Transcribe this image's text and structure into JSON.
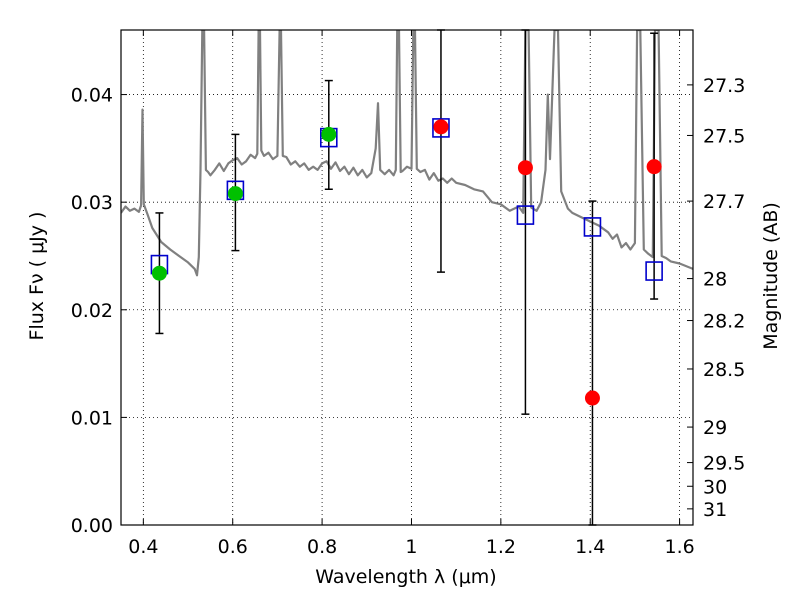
{
  "chart_data": {
    "type": "scatter",
    "xlabel": "Wavelength  λ (μm)",
    "ylabel": "Flux  Fν  ( μJy )",
    "ylabel_right": "Magnitude (AB)",
    "xlim": [
      0.35,
      1.63
    ],
    "ylim": [
      0.0,
      0.046
    ],
    "grid": true,
    "x_ticks": [
      0.4,
      0.6,
      0.8,
      1.0,
      1.2,
      1.4,
      1.6
    ],
    "x_tick_labels": [
      "0.4",
      "0.6",
      "0.8",
      "1",
      "1.2",
      "1.4",
      "1.6"
    ],
    "y_ticks": [
      0.0,
      0.01,
      0.02,
      0.03,
      0.04
    ],
    "y_tick_labels": [
      "0.00",
      "0.01",
      "0.02",
      "0.03",
      "0.04"
    ],
    "right_ticks": [
      {
        "label": "27.3",
        "flux": 0.0409
      },
      {
        "label": "27.5",
        "flux": 0.0362
      },
      {
        "label": "27.7",
        "flux": 0.0301
      },
      {
        "label": "28",
        "flux": 0.0229
      },
      {
        "label": "28.2",
        "flux": 0.019
      },
      {
        "label": "28.5",
        "flux": 0.0145
      },
      {
        "label": "29",
        "flux": 0.0091
      },
      {
        "label": "29.5",
        "flux": 0.0058
      },
      {
        "label": "30",
        "flux": 0.0036
      },
      {
        "label": "31",
        "flux": 0.0015
      }
    ],
    "series": [
      {
        "kind": "line",
        "color": "#808080",
        "points": [
          [
            0.35,
            0.029
          ],
          [
            0.36,
            0.0296
          ],
          [
            0.37,
            0.0292
          ],
          [
            0.38,
            0.0294
          ],
          [
            0.39,
            0.0291
          ],
          [
            0.395,
            0.0297
          ],
          [
            0.398,
            0.0386
          ],
          [
            0.401,
            0.0298
          ],
          [
            0.41,
            0.0288
          ],
          [
            0.42,
            0.0276
          ],
          [
            0.44,
            0.0263
          ],
          [
            0.46,
            0.0256
          ],
          [
            0.48,
            0.025
          ],
          [
            0.5,
            0.0244
          ],
          [
            0.515,
            0.0238
          ],
          [
            0.52,
            0.0232
          ],
          [
            0.524,
            0.0249
          ],
          [
            0.528,
            0.033
          ],
          [
            0.532,
            0.046
          ],
          [
            0.536,
            0.046
          ],
          [
            0.54,
            0.033
          ],
          [
            0.545,
            0.0328
          ],
          [
            0.55,
            0.0325
          ],
          [
            0.56,
            0.033
          ],
          [
            0.57,
            0.0336
          ],
          [
            0.58,
            0.0329
          ],
          [
            0.59,
            0.0336
          ],
          [
            0.6,
            0.0339
          ],
          [
            0.61,
            0.0341
          ],
          [
            0.62,
            0.0335
          ],
          [
            0.63,
            0.0338
          ],
          [
            0.64,
            0.0344
          ],
          [
            0.65,
            0.0341
          ],
          [
            0.655,
            0.0345
          ],
          [
            0.658,
            0.046
          ],
          [
            0.661,
            0.046
          ],
          [
            0.664,
            0.0348
          ],
          [
            0.67,
            0.0343
          ],
          [
            0.68,
            0.0346
          ],
          [
            0.69,
            0.034
          ],
          [
            0.7,
            0.0343
          ],
          [
            0.705,
            0.046
          ],
          [
            0.708,
            0.046
          ],
          [
            0.712,
            0.0343
          ],
          [
            0.72,
            0.0342
          ],
          [
            0.73,
            0.0335
          ],
          [
            0.74,
            0.0338
          ],
          [
            0.75,
            0.0333
          ],
          [
            0.76,
            0.0336
          ],
          [
            0.77,
            0.033
          ],
          [
            0.78,
            0.0333
          ],
          [
            0.79,
            0.033
          ],
          [
            0.8,
            0.0336
          ],
          [
            0.81,
            0.0338
          ],
          [
            0.82,
            0.0331
          ],
          [
            0.83,
            0.0337
          ],
          [
            0.84,
            0.0329
          ],
          [
            0.85,
            0.0333
          ],
          [
            0.86,
            0.0326
          ],
          [
            0.87,
            0.0332
          ],
          [
            0.88,
            0.0325
          ],
          [
            0.89,
            0.033
          ],
          [
            0.9,
            0.0323
          ],
          [
            0.91,
            0.0327
          ],
          [
            0.92,
            0.035
          ],
          [
            0.925,
            0.0392
          ],
          [
            0.93,
            0.033
          ],
          [
            0.94,
            0.0326
          ],
          [
            0.95,
            0.033
          ],
          [
            0.96,
            0.0325
          ],
          [
            0.965,
            0.033
          ],
          [
            0.968,
            0.046
          ],
          [
            0.972,
            0.046
          ],
          [
            0.976,
            0.0328
          ],
          [
            0.98,
            0.0329
          ],
          [
            0.99,
            0.0333
          ],
          [
            1.0,
            0.0331
          ],
          [
            1.004,
            0.046
          ],
          [
            1.008,
            0.046
          ],
          [
            1.012,
            0.0331
          ],
          [
            1.02,
            0.0328
          ],
          [
            1.03,
            0.033
          ],
          [
            1.04,
            0.0321
          ],
          [
            1.05,
            0.0327
          ],
          [
            1.06,
            0.032
          ],
          [
            1.07,
            0.0322
          ],
          [
            1.08,
            0.0318
          ],
          [
            1.09,
            0.0322
          ],
          [
            1.1,
            0.0318
          ],
          [
            1.12,
            0.0316
          ],
          [
            1.14,
            0.0312
          ],
          [
            1.16,
            0.031
          ],
          [
            1.18,
            0.03
          ],
          [
            1.2,
            0.0298
          ],
          [
            1.22,
            0.0292
          ],
          [
            1.24,
            0.0296
          ],
          [
            1.25,
            0.029
          ],
          [
            1.255,
            0.046
          ],
          [
            1.262,
            0.046
          ],
          [
            1.268,
            0.0295
          ],
          [
            1.28,
            0.0292
          ],
          [
            1.29,
            0.03
          ],
          [
            1.3,
            0.033
          ],
          [
            1.305,
            0.04
          ],
          [
            1.31,
            0.034
          ],
          [
            1.32,
            0.046
          ],
          [
            1.328,
            0.046
          ],
          [
            1.335,
            0.031
          ],
          [
            1.35,
            0.0294
          ],
          [
            1.36,
            0.029
          ],
          [
            1.38,
            0.0286
          ],
          [
            1.4,
            0.0282
          ],
          [
            1.42,
            0.0278
          ],
          [
            1.44,
            0.0272
          ],
          [
            1.45,
            0.0266
          ],
          [
            1.46,
            0.027
          ],
          [
            1.47,
            0.0258
          ],
          [
            1.48,
            0.0262
          ],
          [
            1.49,
            0.0256
          ],
          [
            1.5,
            0.0262
          ],
          [
            1.505,
            0.046
          ],
          [
            1.512,
            0.046
          ],
          [
            1.52,
            0.0256
          ],
          [
            1.53,
            0.0252
          ],
          [
            1.54,
            0.0249
          ],
          [
            1.545,
            0.046
          ],
          [
            1.553,
            0.046
          ],
          [
            1.56,
            0.025
          ],
          [
            1.57,
            0.0248
          ],
          [
            1.58,
            0.0245
          ],
          [
            1.6,
            0.0243
          ],
          [
            1.63,
            0.0238
          ]
        ]
      },
      {
        "kind": "errorbar",
        "color": "#000000",
        "points": [
          {
            "x": 0.436,
            "lo": 0.0178,
            "hi": 0.029
          },
          {
            "x": 0.606,
            "lo": 0.0255,
            "hi": 0.0363
          },
          {
            "x": 0.815,
            "lo": 0.0312,
            "hi": 0.0413
          },
          {
            "x": 1.066,
            "lo": 0.0235,
            "hi": 0.046
          },
          {
            "x": 1.255,
            "lo": 0.0103,
            "hi": 0.046
          },
          {
            "x": 1.405,
            "lo": 0.0,
            "hi": 0.0301
          },
          {
            "x": 1.543,
            "lo": 0.021,
            "hi": 0.0457
          }
        ]
      },
      {
        "kind": "square",
        "color": "#0000cc",
        "points": [
          [
            0.436,
            0.0242
          ],
          [
            0.606,
            0.0311
          ],
          [
            0.815,
            0.036
          ],
          [
            1.066,
            0.0369
          ],
          [
            1.255,
            0.0288
          ],
          [
            1.405,
            0.0277
          ],
          [
            1.543,
            0.0236
          ]
        ]
      },
      {
        "kind": "circle",
        "color": "#00c000",
        "points": [
          [
            0.436,
            0.0234
          ],
          [
            0.606,
            0.0308
          ],
          [
            0.815,
            0.0363
          ]
        ]
      },
      {
        "kind": "circle",
        "color": "#ff0000",
        "points": [
          [
            1.066,
            0.037
          ],
          [
            1.255,
            0.0332
          ],
          [
            1.405,
            0.0118
          ],
          [
            1.543,
            0.0333
          ]
        ]
      }
    ]
  }
}
